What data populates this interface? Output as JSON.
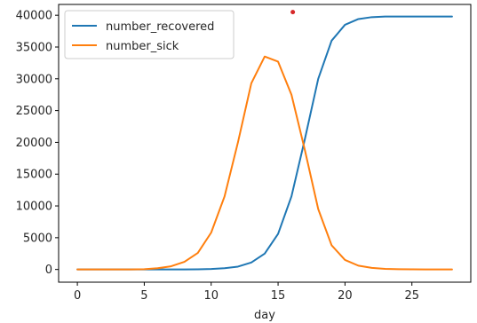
{
  "chart_data": {
    "type": "line",
    "title": "",
    "xlabel": "day",
    "ylabel": "",
    "xlim": [
      -1.4,
      29.4
    ],
    "ylim": [
      -2000,
      41700
    ],
    "x_ticks": [
      0,
      5,
      10,
      15,
      20,
      25
    ],
    "y_ticks": [
      0,
      5000,
      10000,
      15000,
      20000,
      25000,
      30000,
      35000,
      40000
    ],
    "grid": false,
    "legend_position": "top-left",
    "x": [
      0,
      1,
      2,
      3,
      4,
      5,
      6,
      7,
      8,
      9,
      10,
      11,
      12,
      13,
      14,
      15,
      16,
      17,
      18,
      19,
      20,
      21,
      22,
      23,
      24,
      25,
      26,
      27,
      28
    ],
    "series": [
      {
        "name": "number_recovered",
        "color": "#1f77b4",
        "values": [
          0,
          0,
          0,
          0,
          0,
          0,
          0,
          0,
          10,
          30,
          80,
          200,
          450,
          1100,
          2500,
          5600,
          11500,
          20500,
          30000,
          36000,
          38500,
          39400,
          39700,
          39800,
          39800,
          39800,
          39800,
          39800,
          39800
        ]
      },
      {
        "name": "number_sick",
        "color": "#ff7f0e",
        "values": [
          0,
          0,
          0,
          0,
          0,
          50,
          200,
          500,
          1200,
          2600,
          5800,
          11500,
          20000,
          29300,
          33500,
          32700,
          27500,
          18800,
          9500,
          3800,
          1500,
          600,
          250,
          100,
          50,
          20,
          10,
          5,
          0
        ]
      }
    ],
    "annotations": [
      {
        "type": "point",
        "x": 16.1,
        "y": 40500,
        "color": "#d62728"
      }
    ]
  }
}
